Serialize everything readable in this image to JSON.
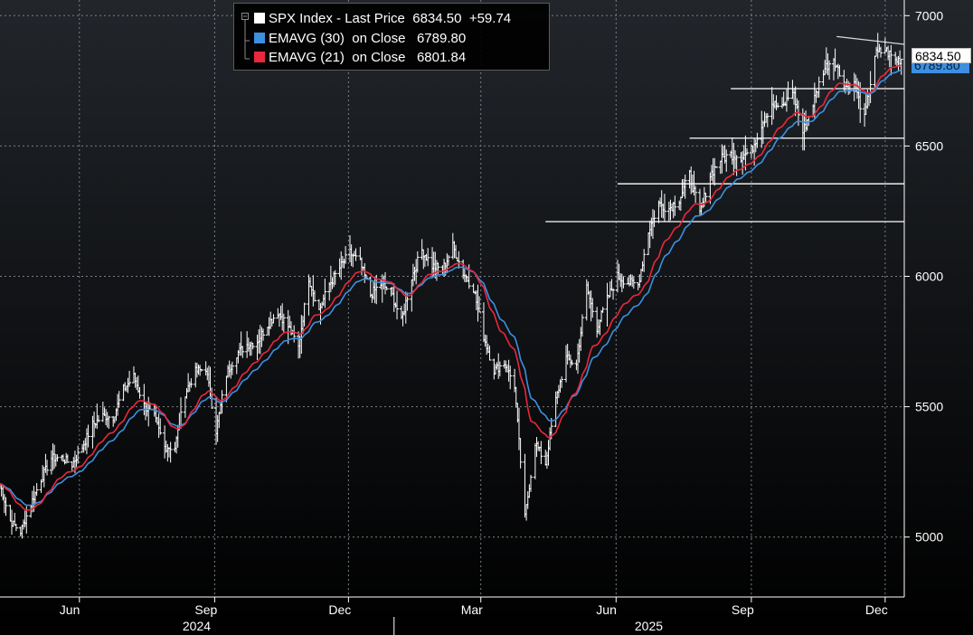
{
  "legend": {
    "rows": [
      {
        "label": "SPX Index - Last Price",
        "value": "6834.50",
        "change": "+59.74",
        "color": "#ffffff"
      },
      {
        "label": "EMAVG (30)  on Close",
        "value": "6789.80",
        "color": "#3d8fe0"
      },
      {
        "label": "EMAVG (21)  on Close",
        "value": "6801.84",
        "color": "#e8283c"
      }
    ]
  },
  "price_tags": {
    "last": "6834.50",
    "ema30": "6789.80"
  },
  "chart_data": {
    "type": "line",
    "title": "",
    "xlabel": "",
    "ylabel": "",
    "ylim": [
      4770,
      7060
    ],
    "yticks": [
      5000,
      5500,
      6000,
      6500,
      7000
    ],
    "x_ticks": [
      "Jun",
      "Sep",
      "Dec",
      "Mar",
      "Jun",
      "Sep",
      "Dec"
    ],
    "year_labels": [
      "2024",
      "2025"
    ],
    "grid": true,
    "legend_position": "top-left",
    "x_range": [
      "2024-04-08",
      "2025-12-14"
    ],
    "series": [
      {
        "name": "SPX Index - Last Price",
        "style": "ohlc-bars",
        "color": "#ffffff",
        "points": [
          [
            "2024-04-08",
            5204
          ],
          [
            "2024-04-15",
            5061
          ],
          [
            "2024-04-22",
            5020
          ],
          [
            "2024-04-29",
            5127
          ],
          [
            "2024-05-06",
            5222
          ],
          [
            "2024-05-13",
            5303
          ],
          [
            "2024-05-20",
            5304
          ],
          [
            "2024-05-27",
            5278
          ],
          [
            "2024-06-03",
            5346
          ],
          [
            "2024-06-10",
            5431
          ],
          [
            "2024-06-17",
            5464
          ],
          [
            "2024-06-24",
            5460
          ],
          [
            "2024-07-01",
            5567
          ],
          [
            "2024-07-08",
            5615
          ],
          [
            "2024-07-15",
            5505
          ],
          [
            "2024-07-22",
            5459
          ],
          [
            "2024-07-29",
            5346
          ],
          [
            "2024-08-05",
            5344
          ],
          [
            "2024-08-12",
            5554
          ],
          [
            "2024-08-19",
            5634
          ],
          [
            "2024-08-26",
            5648
          ],
          [
            "2024-09-02",
            5408
          ],
          [
            "2024-09-09",
            5626
          ],
          [
            "2024-09-16",
            5703
          ],
          [
            "2024-09-23",
            5738
          ],
          [
            "2024-09-30",
            5751
          ],
          [
            "2024-10-07",
            5815
          ],
          [
            "2024-10-14",
            5864
          ],
          [
            "2024-10-21",
            5808
          ],
          [
            "2024-10-28",
            5728
          ],
          [
            "2024-11-04",
            5995
          ],
          [
            "2024-11-11",
            5870
          ],
          [
            "2024-11-18",
            5969
          ],
          [
            "2024-11-25",
            6032
          ],
          [
            "2024-12-02",
            6090
          ],
          [
            "2024-12-09",
            6051
          ],
          [
            "2024-12-16",
            5930
          ],
          [
            "2024-12-23",
            5970
          ],
          [
            "2024-12-30",
            5942
          ],
          [
            "2025-01-06",
            5827
          ],
          [
            "2025-01-13",
            5997
          ],
          [
            "2025-01-20",
            6101
          ],
          [
            "2025-01-27",
            6040
          ],
          [
            "2025-02-03",
            6026
          ],
          [
            "2025-02-10",
            6115
          ],
          [
            "2025-02-17",
            6013
          ],
          [
            "2025-02-24",
            5955
          ],
          [
            "2025-03-03",
            5770
          ],
          [
            "2025-03-10",
            5639
          ],
          [
            "2025-03-17",
            5668
          ],
          [
            "2025-03-24",
            5581
          ],
          [
            "2025-03-31",
            5074
          ],
          [
            "2025-04-07",
            5363
          ],
          [
            "2025-04-14",
            5283
          ],
          [
            "2025-04-21",
            5525
          ],
          [
            "2025-04-28",
            5686
          ],
          [
            "2025-05-05",
            5660
          ],
          [
            "2025-05-12",
            5958
          ],
          [
            "2025-05-19",
            5803
          ],
          [
            "2025-05-26",
            5912
          ],
          [
            "2025-06-02",
            6000
          ],
          [
            "2025-06-09",
            5977
          ],
          [
            "2025-06-16",
            5967
          ],
          [
            "2025-06-23",
            6173
          ],
          [
            "2025-06-30",
            6279
          ],
          [
            "2025-07-07",
            6260
          ],
          [
            "2025-07-14",
            6297
          ],
          [
            "2025-07-21",
            6389
          ],
          [
            "2025-07-28",
            6238
          ],
          [
            "2025-08-04",
            6389
          ],
          [
            "2025-08-11",
            6449
          ],
          [
            "2025-08-18",
            6467
          ],
          [
            "2025-08-25",
            6460
          ],
          [
            "2025-09-01",
            6482
          ],
          [
            "2025-09-08",
            6584
          ],
          [
            "2025-09-15",
            6664
          ],
          [
            "2025-09-22",
            6643
          ],
          [
            "2025-09-29",
            6716
          ],
          [
            "2025-10-06",
            6552
          ],
          [
            "2025-10-13",
            6664
          ],
          [
            "2025-10-20",
            6791
          ],
          [
            "2025-10-27",
            6840
          ],
          [
            "2025-11-03",
            6728
          ],
          [
            "2025-11-10",
            6734
          ],
          [
            "2025-11-17",
            6603
          ],
          [
            "2025-11-24",
            6849
          ],
          [
            "2025-12-01",
            6870
          ],
          [
            "2025-12-08",
            6827
          ],
          [
            "2025-12-12",
            6834.5
          ]
        ]
      },
      {
        "name": "EMAVG (30)  on Close",
        "color": "#3d8fe0",
        "last": 6789.8
      },
      {
        "name": "EMAVG (21)  on Close",
        "color": "#e8283c",
        "last": 6801.84
      }
    ],
    "horizontal_lines": [
      {
        "y": 6720,
        "x_start": "2025-08-18"
      },
      {
        "y": 6530,
        "x_start": "2025-07-21"
      },
      {
        "y": 6355,
        "x_start": "2025-06-02"
      },
      {
        "y": 6210,
        "x_start": "2025-04-14"
      }
    ],
    "trend_line": {
      "x": [
        "2025-10-29",
        "2025-12-14"
      ],
      "y": [
        6920,
        6890
      ]
    }
  }
}
